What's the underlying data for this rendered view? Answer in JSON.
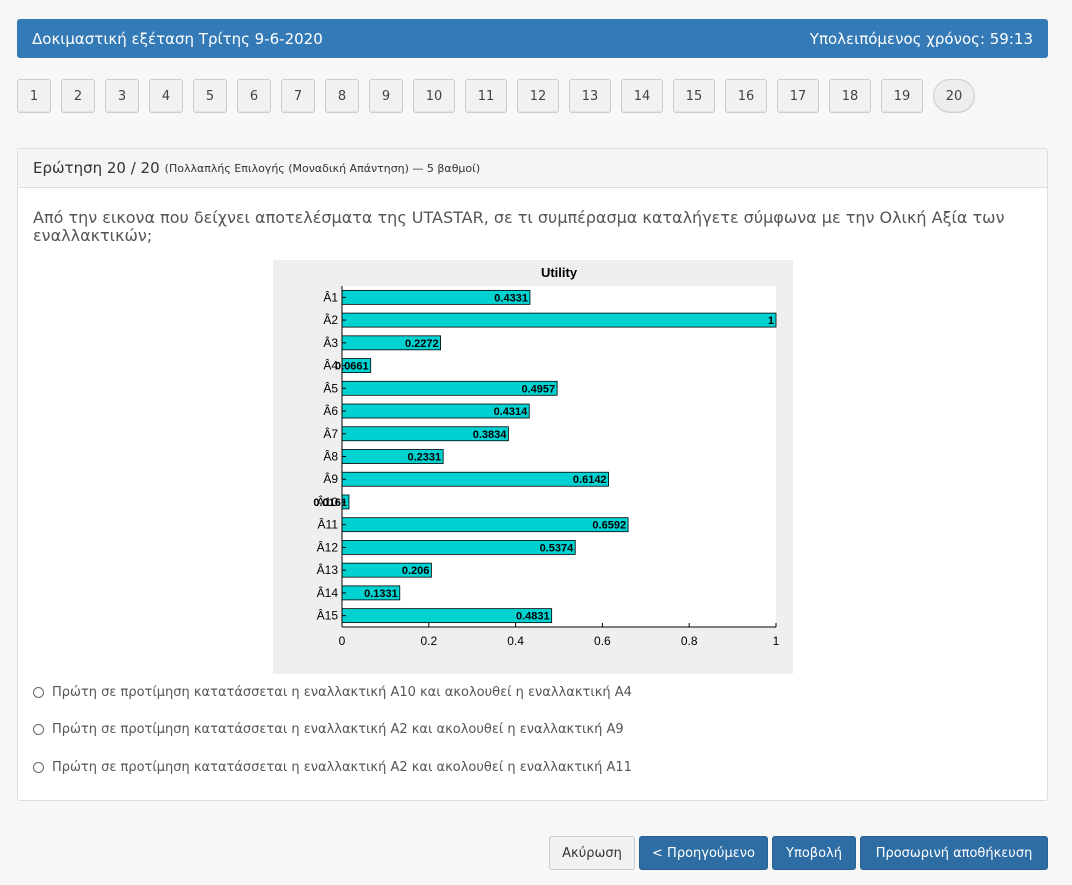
{
  "header": {
    "title": "Δοκιμαστική εξέταση Τρίτης 9-6-2020",
    "timer": "Υπολειπόμενος χρόνος: 59:13"
  },
  "pager": [
    "1",
    "2",
    "3",
    "4",
    "5",
    "6",
    "7",
    "8",
    "9",
    "10",
    "11",
    "12",
    "13",
    "14",
    "15",
    "16",
    "17",
    "18",
    "19",
    "20"
  ],
  "question": {
    "number": "Ερώτηση 20 / 20",
    "meta": "(Πολλαπλής Επιλογής (Μοναδική Απάντηση) — 5 βαθμοί)",
    "text": "Από την εικονα που δείχνει αποτελέσματα της UTASTAR, σε τι συμπέρασμα καταλήγετε σύμφωνα με την Ολική Αξία των εναλλακτικών;"
  },
  "options": [
    "Πρώτη σε προτίμηση κατατάσσεται η εναλλακτική Α10 και ακολουθεί η εναλλακτική Α4",
    "Πρώτη σε προτίμηση κατατάσσεται η εναλλακτική Α2 και ακολουθεί η εναλλακτική Α9",
    "Πρώτη σε προτίμηση κατατάσσεται η εναλλακτική Α2 και ακολουθεί η εναλλακτική Α11"
  ],
  "buttons": {
    "cancel": "Ακύρωση",
    "previous": "< Προηγούμενο",
    "submit": "Υποβολή",
    "save": "Προσωρινή αποθήκευση"
  },
  "colors": {
    "header_bg": "#337ab7",
    "primary_btn": "#2e6da4",
    "bar_fill": "#00d2d2"
  },
  "chart_data": {
    "type": "bar",
    "orientation": "horizontal",
    "title": "Utility",
    "categories": [
      "Â1",
      "Â2",
      "Â3",
      "Â4",
      "Â5",
      "Â6",
      "Â7",
      "Â8",
      "Â9",
      "Â10",
      "Â11",
      "Â12",
      "Â13",
      "Â14",
      "Â15"
    ],
    "values": [
      0.4331,
      1,
      0.2272,
      0.0661,
      0.4957,
      0.4314,
      0.3834,
      0.2331,
      0.6142,
      0.0161,
      0.6592,
      0.5374,
      0.206,
      0.1331,
      0.4831
    ],
    "value_labels": [
      "0.4331",
      "1",
      "0.2272",
      "0.0661",
      "0.4957",
      "0.4314",
      "0.3834",
      "0.2331",
      "0.6142",
      "0.0161",
      "0.6592",
      "0.5374",
      "0.206",
      "0.1331",
      "0.4831"
    ],
    "xticks": [
      "0",
      "0.2",
      "0.4",
      "0.6",
      "0.8",
      "1"
    ],
    "xlim": [
      0,
      1
    ],
    "xlabel": "",
    "ylabel": "",
    "grid": false
  }
}
